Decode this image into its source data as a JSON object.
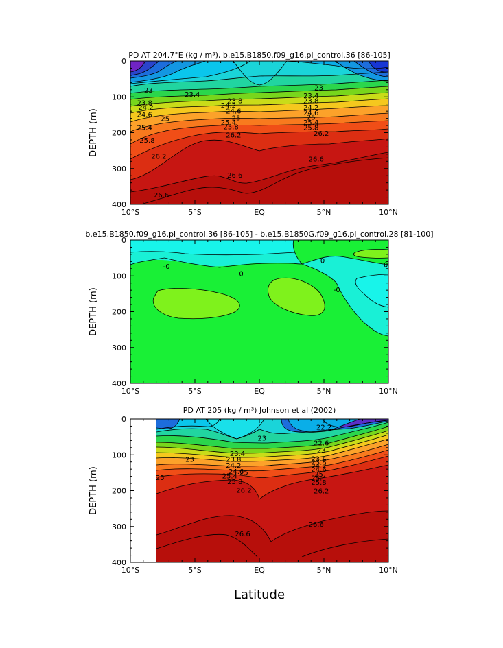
{
  "figure": {
    "xlabel": "Latitude",
    "xticks": [
      "10°S",
      "5°S",
      "EQ",
      "5°N",
      "10°N"
    ],
    "yticks": [
      "0",
      "100",
      "200",
      "300",
      "400"
    ]
  },
  "chart_data": [
    {
      "type": "heatmap",
      "title": "PD AT 204.7°E (kg / m³), b.e15.B1850.f09_g16.pi_control.36 [86-105]",
      "ylabel": "DEPTH (m)",
      "xlim": [
        -10,
        10
      ],
      "ylim": [
        400,
        0
      ],
      "contour_levels": [
        21.4,
        21.8,
        22.2,
        22.6,
        23.0,
        23.4,
        23.8,
        24.2,
        24.6,
        25.0,
        25.4,
        25.8,
        26.2,
        26.6,
        27.0
      ],
      "contour_labels": [
        {
          "text": "23",
          "lat": -8.6,
          "depth": 82
        },
        {
          "text": "23.4",
          "lat": -5.2,
          "depth": 94
        },
        {
          "text": "23.8",
          "lat": -8.9,
          "depth": 118
        },
        {
          "text": "24.2",
          "lat": -8.8,
          "depth": 130
        },
        {
          "text": "24.6",
          "lat": -8.9,
          "depth": 150
        },
        {
          "text": "25",
          "lat": -7.3,
          "depth": 162
        },
        {
          "text": "25.4",
          "lat": -8.9,
          "depth": 187
        },
        {
          "text": "25.8",
          "lat": -8.7,
          "depth": 222
        },
        {
          "text": "26.2",
          "lat": -7.8,
          "depth": 267
        },
        {
          "text": "26.6",
          "lat": -1.9,
          "depth": 320
        },
        {
          "text": "26.6",
          "lat": -7.6,
          "depth": 375
        },
        {
          "text": "23.8",
          "lat": -1.9,
          "depth": 112
        },
        {
          "text": "24.2",
          "lat": -2.4,
          "depth": 124
        },
        {
          "text": "24.6",
          "lat": -2.0,
          "depth": 141
        },
        {
          "text": "25",
          "lat": -1.8,
          "depth": 160
        },
        {
          "text": "25.4",
          "lat": -2.4,
          "depth": 172
        },
        {
          "text": "25.8",
          "lat": -2.2,
          "depth": 185
        },
        {
          "text": "26.2",
          "lat": -2.0,
          "depth": 208
        },
        {
          "text": "23",
          "lat": 4.6,
          "depth": 76
        },
        {
          "text": "23.4",
          "lat": 4.0,
          "depth": 98
        },
        {
          "text": "23.8",
          "lat": 4.0,
          "depth": 112
        },
        {
          "text": "24.2",
          "lat": 4.0,
          "depth": 130
        },
        {
          "text": "24.6",
          "lat": 4.0,
          "depth": 145
        },
        {
          "text": "25",
          "lat": 4.0,
          "depth": 158
        },
        {
          "text": "25.4",
          "lat": 4.0,
          "depth": 172
        },
        {
          "text": "25.8",
          "lat": 4.0,
          "depth": 187
        },
        {
          "text": "26.2",
          "lat": 4.8,
          "depth": 203
        },
        {
          "text": "26.6",
          "lat": 4.4,
          "depth": 275
        }
      ]
    },
    {
      "type": "heatmap",
      "title": "b.e15.B1850.f09_g16.pi_control.36 [86-105] - b.e15.B1850G.f09_g16.pi_control.28 [81-100]",
      "ylabel": "DEPTH (m)",
      "xlim": [
        -10,
        10
      ],
      "ylim": [
        400,
        0
      ],
      "contour_levels": [
        -0.2,
        0,
        0.2
      ],
      "contour_labels": [
        {
          "text": "-0",
          "lat": -7.2,
          "depth": 75
        },
        {
          "text": "-0",
          "lat": -1.5,
          "depth": 95
        },
        {
          "text": "-0",
          "lat": 4.8,
          "depth": 58
        },
        {
          "text": "-0",
          "lat": 6.0,
          "depth": 140
        },
        {
          "text": "0",
          "lat": 9.8,
          "depth": 70
        }
      ]
    },
    {
      "type": "heatmap",
      "title": "PD AT 205 (kg / m³) Johnson et al (2002)",
      "ylabel": "DEPTH (m)",
      "xlim": [
        -10,
        10
      ],
      "ylim": [
        400,
        0
      ],
      "data_lat_range": [
        -8,
        10
      ],
      "contour_levels": [
        21.4,
        21.8,
        22.2,
        22.6,
        23.0,
        23.4,
        23.8,
        24.2,
        24.6,
        25.0,
        25.4,
        25.8,
        26.2,
        26.6,
        27.0
      ],
      "contour_labels": [
        {
          "text": "23",
          "lat": 0.2,
          "depth": 55
        },
        {
          "text": "23",
          "lat": -5.4,
          "depth": 114
        },
        {
          "text": "23.4",
          "lat": -1.7,
          "depth": 98
        },
        {
          "text": "23.8",
          "lat": -2.0,
          "depth": 114
        },
        {
          "text": "24.2",
          "lat": -2.0,
          "depth": 130
        },
        {
          "text": "24.6",
          "lat": -1.8,
          "depth": 147
        },
        {
          "text": "25",
          "lat": -1.2,
          "depth": 150
        },
        {
          "text": "25",
          "lat": -7.7,
          "depth": 165
        },
        {
          "text": "25.4",
          "lat": -2.3,
          "depth": 160
        },
        {
          "text": "25.8",
          "lat": -1.9,
          "depth": 176
        },
        {
          "text": "26.2",
          "lat": -1.2,
          "depth": 200
        },
        {
          "text": "26.6",
          "lat": -1.3,
          "depth": 322
        },
        {
          "text": "26.6",
          "lat": 4.4,
          "depth": 295
        },
        {
          "text": "22.2",
          "lat": 5.0,
          "depth": 24
        },
        {
          "text": "22.6",
          "lat": 4.8,
          "depth": 68
        },
        {
          "text": "23",
          "lat": 4.8,
          "depth": 88
        },
        {
          "text": "23.4",
          "lat": 4.6,
          "depth": 112
        },
        {
          "text": "23.8",
          "lat": 4.6,
          "depth": 122
        },
        {
          "text": "24.2",
          "lat": 4.6,
          "depth": 132
        },
        {
          "text": "24.6",
          "lat": 4.6,
          "depth": 142
        },
        {
          "text": "25",
          "lat": 4.6,
          "depth": 155
        },
        {
          "text": "25.4",
          "lat": 4.6,
          "depth": 166
        },
        {
          "text": "25.8",
          "lat": 4.6,
          "depth": 178
        },
        {
          "text": "26.2",
          "lat": 4.8,
          "depth": 202
        }
      ]
    }
  ]
}
